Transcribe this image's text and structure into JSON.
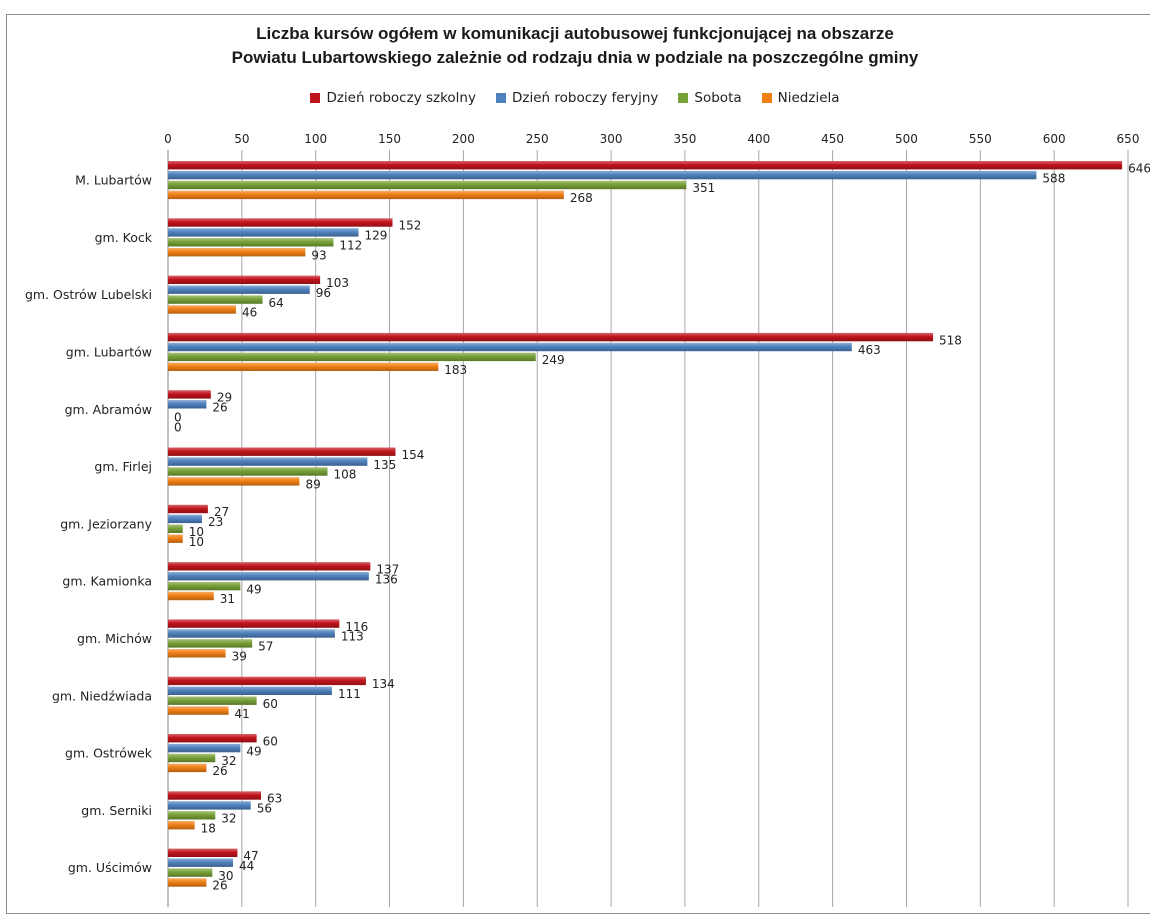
{
  "chart_data": {
    "type": "bar",
    "orientation": "horizontal",
    "title_lines": [
      "Liczba kursów ogółem w komunikacji autobusowej funkcjonującej na obszarze",
      "Powiatu Lubartowskiego zależnie od rodzaju dnia w podziale na poszczególne gminy"
    ],
    "xlabel": "",
    "ylabel": "",
    "xlim": [
      0,
      650
    ],
    "x_ticks": [
      0,
      50,
      100,
      150,
      200,
      250,
      300,
      350,
      400,
      450,
      500,
      550,
      600,
      650
    ],
    "axis_position": "top",
    "grid": true,
    "legend_position": "top",
    "categories": [
      "M. Lubartów",
      "gm. Kock",
      "gm. Ostrów Lubelski",
      "gm. Lubartów",
      "gm. Abramów",
      "gm. Firlej",
      "gm. Jeziorzany",
      "gm. Kamionka",
      "gm. Michów",
      "gm. Niedźwiada",
      "gm. Ostrówek",
      "gm. Serniki",
      "gm. Uścimów"
    ],
    "series": [
      {
        "name": "Dzień roboczy szkolny",
        "color": "#c0141c",
        "values": [
          646,
          152,
          103,
          518,
          29,
          154,
          27,
          137,
          116,
          134,
          60,
          63,
          47
        ]
      },
      {
        "name": "Dzień roboczy feryjny",
        "color": "#4f81bd",
        "values": [
          588,
          129,
          96,
          463,
          26,
          135,
          23,
          136,
          113,
          111,
          49,
          56,
          44
        ]
      },
      {
        "name": "Sobota",
        "color": "#77a037",
        "values": [
          351,
          112,
          64,
          249,
          0,
          108,
          10,
          49,
          57,
          60,
          32,
          32,
          30
        ]
      },
      {
        "name": "Niedziela",
        "color": "#f07f14",
        "values": [
          268,
          93,
          46,
          183,
          0,
          89,
          10,
          31,
          39,
          41,
          26,
          18,
          26
        ]
      }
    ]
  }
}
